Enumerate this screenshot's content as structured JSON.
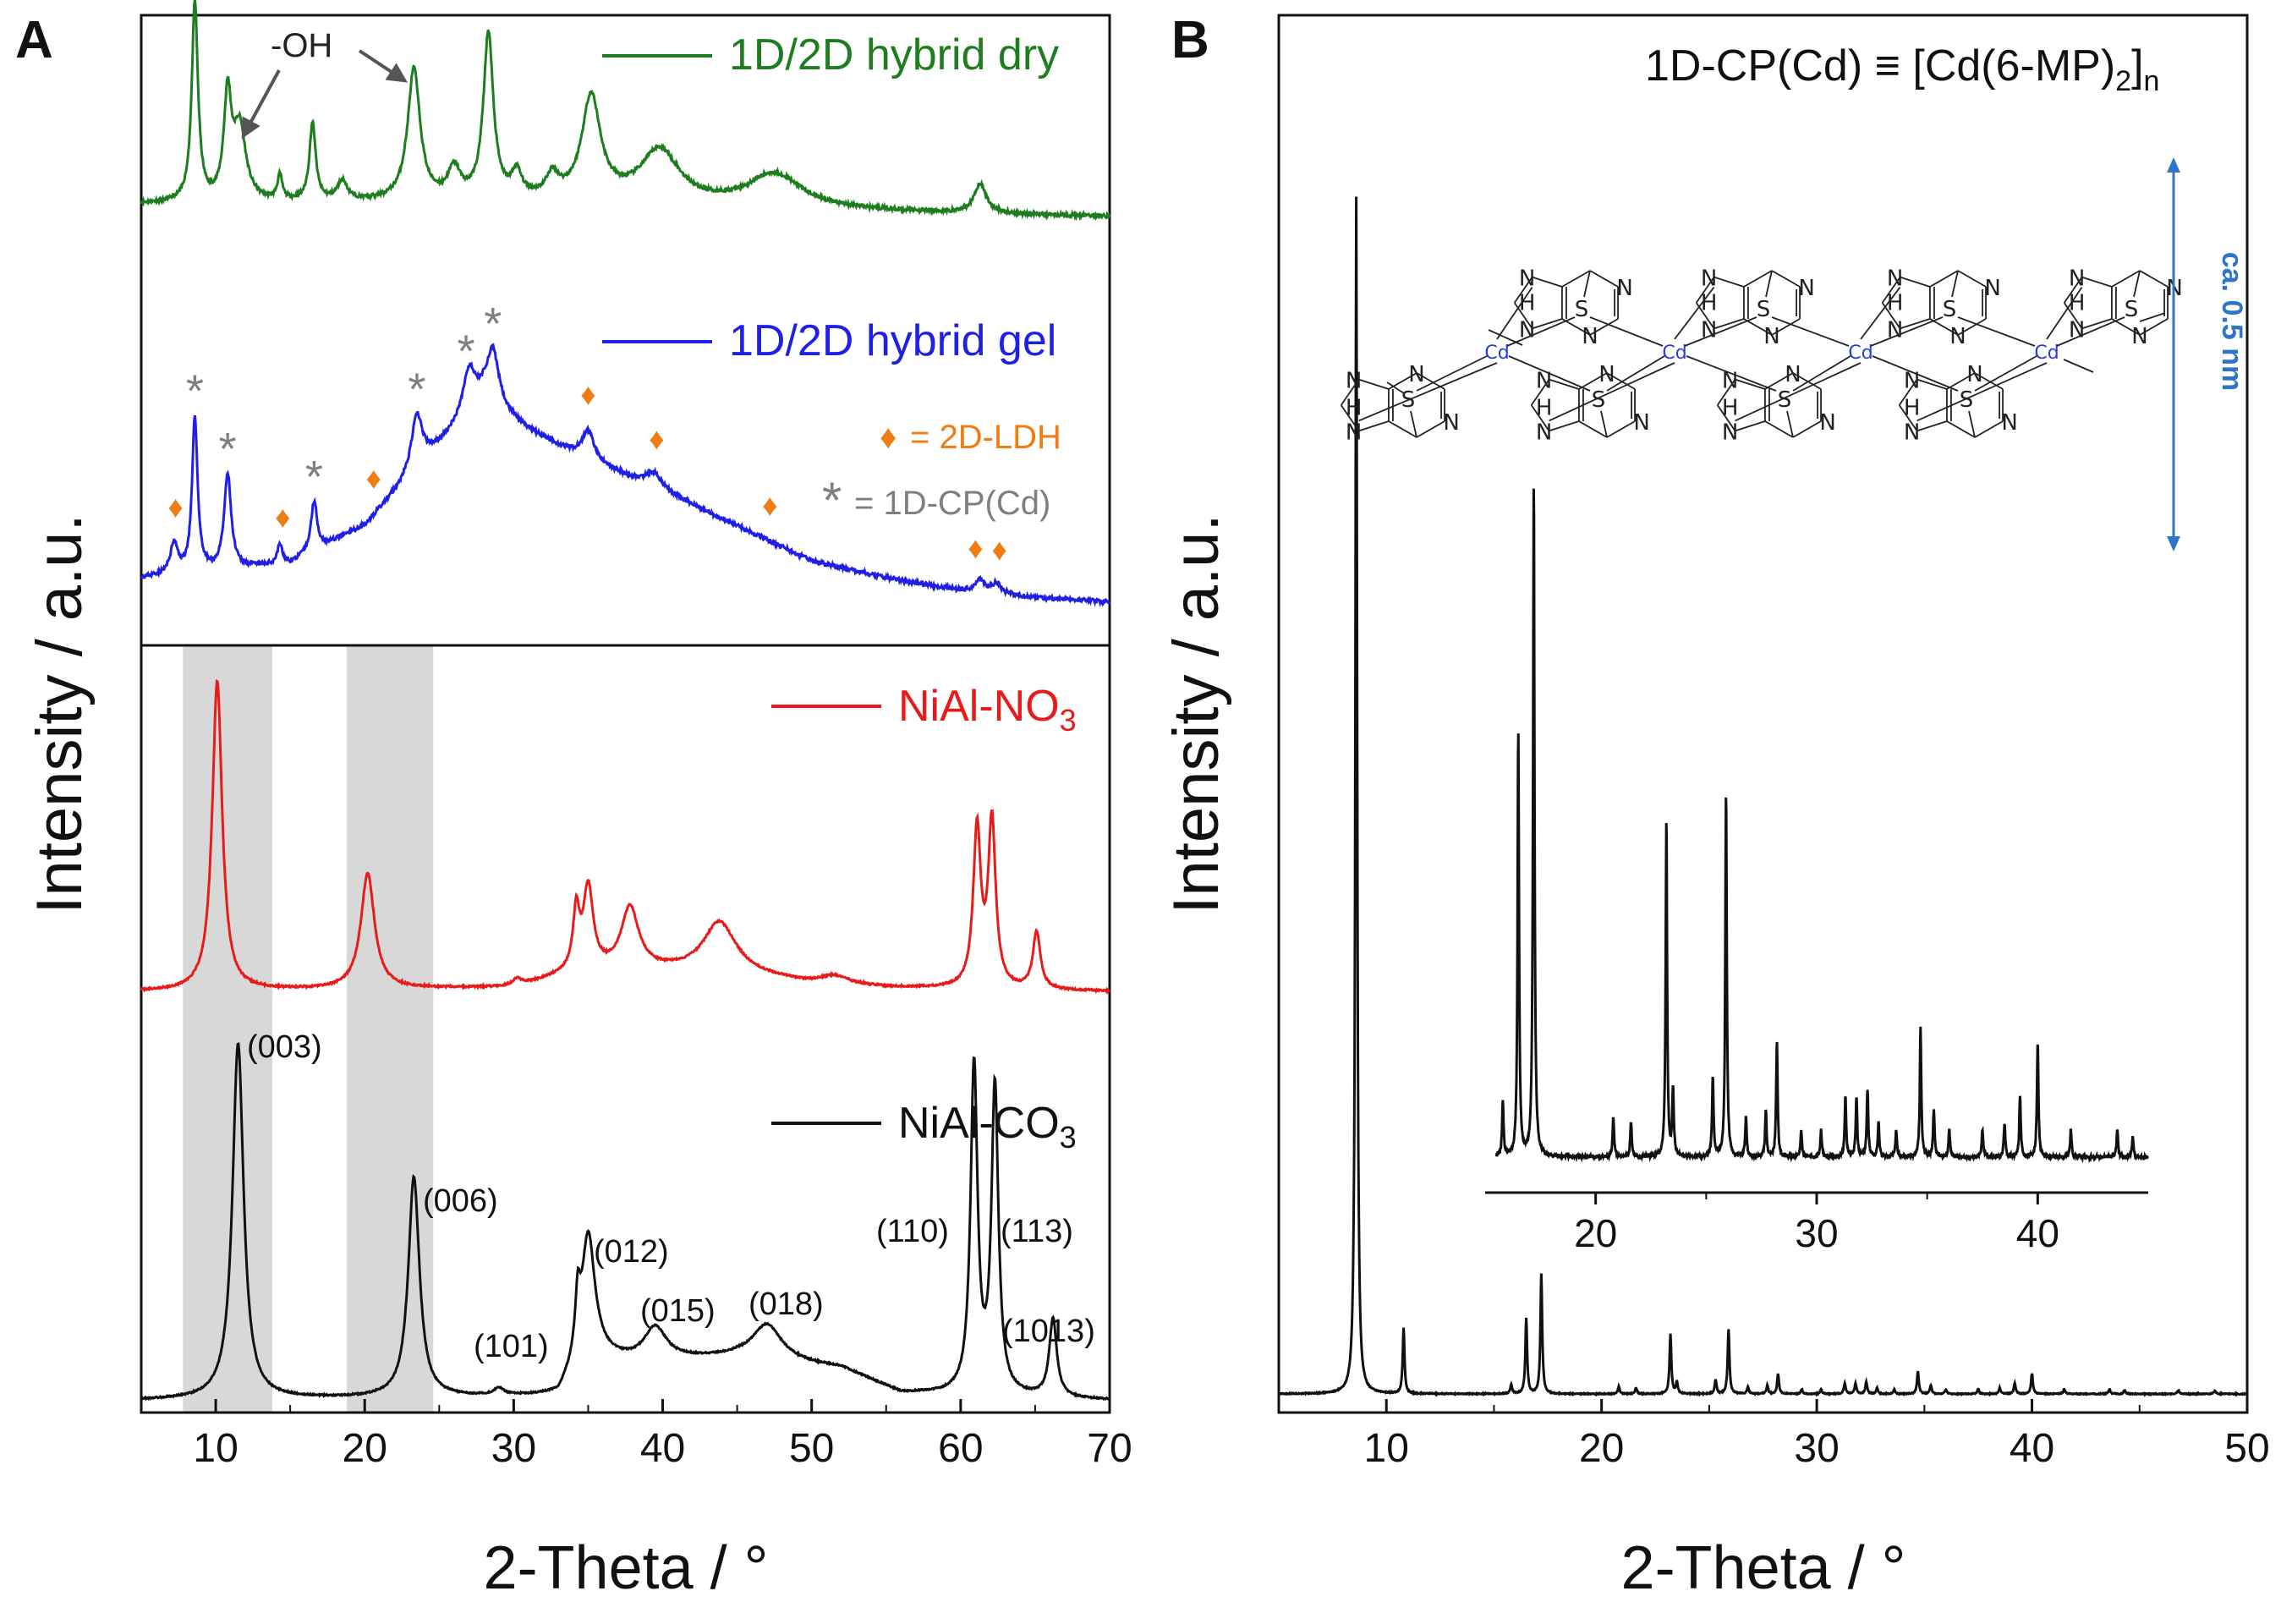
{
  "colors": {
    "dry": "#1e7d1e",
    "gel": "#1f1fe6",
    "no3": "#e81b1b",
    "co3": "#111111",
    "ldh_marker": "#f07d14",
    "cp_marker": "#7f7f7f",
    "shade": "#d8d8d8",
    "arrow": "#555555",
    "dimension": "#2e75c9",
    "cd_label": "#2a3cd9"
  },
  "chart_data": [
    {
      "type": "line",
      "panel_label": "A",
      "xlabel": "2-Theta / °",
      "ylabel": "Intensity / a.u.",
      "xlim": [
        5,
        70
      ],
      "xticks": [
        "10",
        "20",
        "30",
        "40",
        "50",
        "60",
        "70"
      ],
      "y_ticks_shown": false,
      "shaded_ranges": [
        [
          7.8,
          13.8
        ],
        [
          18.8,
          24.6
        ]
      ],
      "series": [
        {
          "name": "1D/2D hybrid dry",
          "legend": "1D/2D hybrid dry",
          "color_key": "dry",
          "baseline": 0.33,
          "noise": 0.018,
          "background": [
            [
              5,
              0.18
            ],
            [
              25,
              0.2
            ],
            [
              35,
              0.2
            ],
            [
              40,
              0.16
            ],
            [
              50,
              0.12
            ],
            [
              60,
              0.08
            ],
            [
              70,
              0.05
            ]
          ],
          "peaks": [
            {
              "x": 8.6,
              "h": 2.05,
              "w": 0.25
            },
            {
              "x": 10.8,
              "h": 1.05,
              "w": 0.3
            },
            {
              "x": 11.6,
              "h": 0.75,
              "w": 0.5
            },
            {
              "x": 14.3,
              "h": 0.25,
              "w": 0.2
            },
            {
              "x": 16.5,
              "h": 0.8,
              "w": 0.25
            },
            {
              "x": 18.5,
              "h": 0.2,
              "w": 0.4
            },
            {
              "x": 23.3,
              "h": 1.35,
              "w": 0.5
            },
            {
              "x": 26,
              "h": 0.3,
              "w": 0.5
            },
            {
              "x": 28.3,
              "h": 1.7,
              "w": 0.4
            },
            {
              "x": 30.2,
              "h": 0.25,
              "w": 0.4
            },
            {
              "x": 32.6,
              "h": 0.22,
              "w": 0.5
            },
            {
              "x": 35.2,
              "h": 1.05,
              "w": 0.75
            },
            {
              "x": 39.8,
              "h": 0.55,
              "w": 1.6
            },
            {
              "x": 47.5,
              "h": 0.35,
              "w": 2.2
            },
            {
              "x": 61.3,
              "h": 0.3,
              "w": 0.5
            }
          ]
        },
        {
          "name": "1D/2D hybrid gel",
          "legend": "1D/2D hybrid gel",
          "color_key": "gel",
          "baseline": 0.33,
          "noise": 0.02,
          "background": [
            [
              5,
              0.28
            ],
            [
              15,
              0.42
            ],
            [
              20,
              0.8
            ],
            [
              25,
              1.6
            ],
            [
              28,
              2.05
            ],
            [
              31,
              1.75
            ],
            [
              35,
              1.45
            ],
            [
              40,
              1.15
            ],
            [
              45,
              0.8
            ],
            [
              50,
              0.45
            ],
            [
              55,
              0.28
            ],
            [
              60,
              0.15
            ],
            [
              65,
              0.08
            ],
            [
              70,
              0.04
            ]
          ],
          "peaks": [
            {
              "x": 7.2,
              "h": 0.3,
              "w": 0.3
            },
            {
              "x": 8.6,
              "h": 1.55,
              "w": 0.22
            },
            {
              "x": 10.8,
              "h": 0.95,
              "w": 0.28
            },
            {
              "x": 14.3,
              "h": 0.2,
              "w": 0.2
            },
            {
              "x": 16.6,
              "h": 0.5,
              "w": 0.25
            },
            {
              "x": 23.5,
              "h": 0.55,
              "w": 0.45
            },
            {
              "x": 27,
              "h": 0.45,
              "w": 0.5
            },
            {
              "x": 28.6,
              "h": 0.55,
              "w": 0.5
            },
            {
              "x": 35,
              "h": 0.3,
              "w": 0.5
            },
            {
              "x": 39.4,
              "h": 0.15,
              "w": 0.6
            },
            {
              "x": 61.3,
              "h": 0.12,
              "w": 0.4
            },
            {
              "x": 62.4,
              "h": 0.1,
              "w": 0.4
            }
          ]
        },
        {
          "name": "NiAl-NO3",
          "legend": "NiAl-NO",
          "legend_sub": "3",
          "color_key": "no3",
          "baseline": 0.15,
          "noise": 0.012,
          "background": [
            [
              5,
              0
            ],
            [
              30,
              0.05
            ],
            [
              34,
              0.25
            ],
            [
              38,
              0.3
            ],
            [
              45,
              0.25
            ],
            [
              50,
              0.1
            ],
            [
              55,
              0.05
            ],
            [
              70,
              0
            ]
          ],
          "peaks": [
            {
              "x": 10.1,
              "h": 4.3,
              "w": 0.4
            },
            {
              "x": 20.2,
              "h": 1.6,
              "w": 0.55
            },
            {
              "x": 30.2,
              "h": 0.1,
              "w": 0.4
            },
            {
              "x": 34.2,
              "h": 0.8,
              "w": 0.25
            },
            {
              "x": 35,
              "h": 1.15,
              "w": 0.4
            },
            {
              "x": 37.8,
              "h": 0.85,
              "w": 0.7
            },
            {
              "x": 43.8,
              "h": 0.7,
              "w": 1.3
            },
            {
              "x": 51.5,
              "h": 0.12,
              "w": 1.2
            },
            {
              "x": 61.1,
              "h": 2.2,
              "w": 0.3
            },
            {
              "x": 62.1,
              "h": 2.3,
              "w": 0.3
            },
            {
              "x": 65.1,
              "h": 0.8,
              "w": 0.3
            }
          ]
        },
        {
          "name": "NiAl-CO3",
          "legend": "NiAl-CO",
          "legend_sub": "3",
          "color_key": "co3",
          "baseline": 0.15,
          "noise": 0.01,
          "background": [
            [
              5,
              0
            ],
            [
              33,
              0.05
            ],
            [
              35,
              0.6
            ],
            [
              38,
              0.55
            ],
            [
              45,
              0.6
            ],
            [
              52,
              0.45
            ],
            [
              56,
              0.1
            ],
            [
              70,
              0
            ]
          ],
          "peaks": [
            {
              "x": 11.5,
              "h": 5.0,
              "w": 0.45
            },
            {
              "x": 23.3,
              "h": 3.1,
              "w": 0.45
            },
            {
              "x": 29,
              "h": 0.1,
              "w": 0.4
            },
            {
              "x": 34.3,
              "h": 0.75,
              "w": 0.2
            },
            {
              "x": 35,
              "h": 1.7,
              "w": 0.55
            },
            {
              "x": 39.5,
              "h": 0.45,
              "w": 0.9
            },
            {
              "x": 47,
              "h": 0.5,
              "w": 1.2
            },
            {
              "x": 60.9,
              "h": 4.6,
              "w": 0.28
            },
            {
              "x": 62.3,
              "h": 4.3,
              "w": 0.28
            },
            {
              "x": 66.2,
              "h": 1.1,
              "w": 0.3
            }
          ]
        }
      ],
      "annotations": {
        "oh_label": "-OH",
        "ldh_legend": "= 2D-LDH",
        "cp_legend": "= 1D-CP(Cd)",
        "ldh_symbol": "♦",
        "cp_symbol": "*",
        "ldh_positions": [
          7.3,
          14.5,
          20.6,
          35,
          39.6,
          47.2,
          61,
          62.6
        ],
        "cp_positions": [
          8.6,
          10.8,
          16.6,
          23.5,
          26.8,
          28.6
        ],
        "miller_labels": [
          "(003)",
          "(006)",
          "(101)",
          "(012)",
          "(015)",
          "(018)",
          "(110)",
          "(113)",
          "(1013)"
        ]
      }
    },
    {
      "type": "line",
      "panel_label": "B",
      "xlabel": "2-Theta / °",
      "ylabel": "Intensity / a.u.",
      "xlim": [
        5,
        50
      ],
      "xticks": [
        "10",
        "20",
        "30",
        "40",
        "50"
      ],
      "y_ticks_shown": false,
      "title": "1D-CP(Cd) ≡ [Cd(6-MP)",
      "title_sub": "2",
      "title_close": "]",
      "title_sub2": "n",
      "series": [
        {
          "name": "1D-CP(Cd)",
          "color_key": "co3",
          "peaks": [
            {
              "x": 8.6,
              "h": 1.0
            },
            {
              "x": 10.8,
              "h": 0.055
            },
            {
              "x": 15.8,
              "h": 0.008
            },
            {
              "x": 16.5,
              "h": 0.063
            },
            {
              "x": 17.2,
              "h": 0.1
            },
            {
              "x": 20.8,
              "h": 0.006
            },
            {
              "x": 21.6,
              "h": 0.005
            },
            {
              "x": 23.2,
              "h": 0.05
            },
            {
              "x": 23.5,
              "h": 0.01
            },
            {
              "x": 25.3,
              "h": 0.012
            },
            {
              "x": 25.9,
              "h": 0.054
            },
            {
              "x": 26.8,
              "h": 0.006
            },
            {
              "x": 27.7,
              "h": 0.007
            },
            {
              "x": 28.2,
              "h": 0.017
            },
            {
              "x": 29.3,
              "h": 0.004
            },
            {
              "x": 30.2,
              "h": 0.004
            },
            {
              "x": 31.3,
              "h": 0.009
            },
            {
              "x": 31.8,
              "h": 0.009
            },
            {
              "x": 32.3,
              "h": 0.01
            },
            {
              "x": 32.8,
              "h": 0.005
            },
            {
              "x": 33.6,
              "h": 0.004
            },
            {
              "x": 34.7,
              "h": 0.019
            },
            {
              "x": 35.3,
              "h": 0.007
            },
            {
              "x": 36,
              "h": 0.004
            },
            {
              "x": 37.5,
              "h": 0.004
            },
            {
              "x": 38.5,
              "h": 0.005
            },
            {
              "x": 39.2,
              "h": 0.009
            },
            {
              "x": 40,
              "h": 0.017
            },
            {
              "x": 41.5,
              "h": 0.004
            },
            {
              "x": 43.6,
              "h": 0.004
            },
            {
              "x": 44.3,
              "h": 0.003
            },
            {
              "x": 46.8,
              "h": 0.003
            },
            {
              "x": 48.5,
              "h": 0.003
            }
          ]
        }
      ],
      "inset": {
        "xlim": [
          15,
          45
        ],
        "xticks": [
          "20",
          "30",
          "40"
        ]
      },
      "structure": {
        "cd_label": "Cd",
        "s_label": "S",
        "n_label": "N",
        "h_label": "H",
        "dimension_label": "ca. 0.5 nm"
      }
    }
  ]
}
